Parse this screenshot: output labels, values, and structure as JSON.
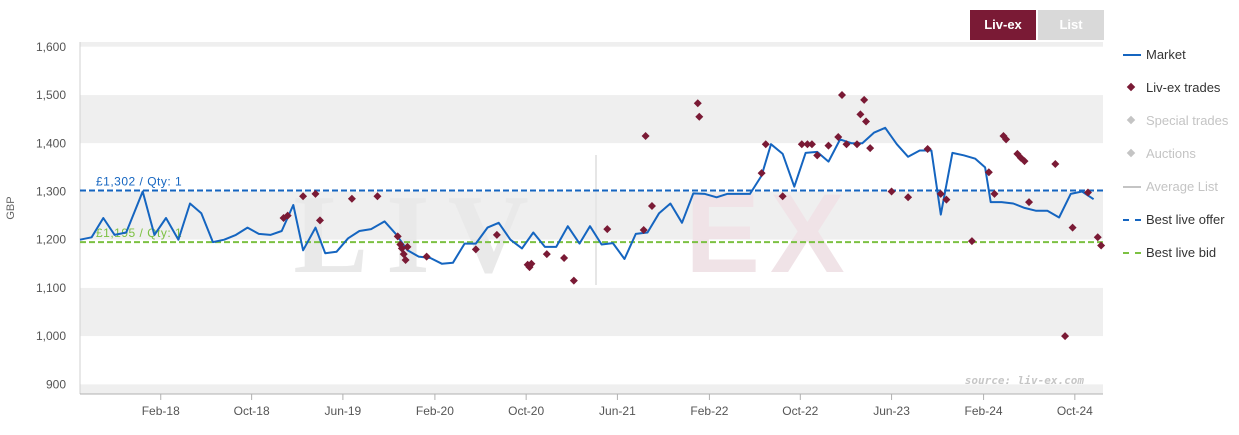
{
  "tabs": [
    {
      "id": "livex",
      "label": "Liv-ex",
      "active": true
    },
    {
      "id": "list",
      "label": "List",
      "active": false
    }
  ],
  "watermark": {
    "left": "LIV",
    "right": "EX"
  },
  "source": "source: liv-ex.com",
  "legend": [
    {
      "label": "Market",
      "symbol": "line",
      "color": "#1565c0",
      "active": true
    },
    {
      "label": "Liv-ex trades",
      "symbol": "diamond",
      "color": "#7a1a35",
      "active": true
    },
    {
      "label": "Special trades",
      "symbol": "diamond",
      "color": "#c4c4c4",
      "active": false
    },
    {
      "label": "Auctions",
      "symbol": "diamond",
      "color": "#c4c4c4",
      "active": false
    },
    {
      "label": "Average List",
      "symbol": "line",
      "color": "#c4c4c4",
      "active": false
    },
    {
      "label": "Best live offer",
      "symbol": "dash",
      "color": "#1565c0",
      "active": true
    },
    {
      "label": "Best live bid",
      "symbol": "dash",
      "color": "#7cc142",
      "active": true
    }
  ],
  "chart_data": {
    "type": "line",
    "title": "",
    "ylabel": "GBP",
    "xlabel": "",
    "ylim": [
      880,
      1610
    ],
    "xlim": [
      "2017-07-01",
      "2024-12-15"
    ],
    "yticks": [
      900,
      1000,
      1100,
      1200,
      1300,
      1400,
      1500,
      1600
    ],
    "ytick_labels": [
      "900",
      "1,000",
      "1,100",
      "1,200",
      "1,300",
      "1,400",
      "1,500",
      "1,600"
    ],
    "xticks": [
      "2018-02-01",
      "2018-10-01",
      "2019-06-01",
      "2020-02-01",
      "2020-10-01",
      "2021-06-01",
      "2022-02-01",
      "2022-10-01",
      "2023-06-01",
      "2024-02-01",
      "2024-10-01"
    ],
    "xtick_labels": [
      "Feb-18",
      "Oct-18",
      "Jun-19",
      "Feb-20",
      "Oct-20",
      "Jun-21",
      "Feb-22",
      "Oct-22",
      "Jun-23",
      "Feb-24",
      "Oct-24"
    ],
    "grid": "alternating horizontal bands",
    "legend_position": "right",
    "reference_lines": [
      {
        "label": "£1,302 / Qty: 1",
        "value": 1302,
        "color": "#1565c0",
        "style": "dashed"
      },
      {
        "label": "£1,195 / Qty: 1",
        "value": 1195,
        "color": "#7cc142",
        "style": "dashed"
      }
    ],
    "series": [
      {
        "name": "Market",
        "kind": "line",
        "color": "#1565c0",
        "points": [
          [
            "2017-07-01",
            1200
          ],
          [
            "2017-08-01",
            1205
          ],
          [
            "2017-09-01",
            1245
          ],
          [
            "2017-10-01",
            1210
          ],
          [
            "2017-11-01",
            1215
          ],
          [
            "2017-12-15",
            1300
          ],
          [
            "2018-01-15",
            1210
          ],
          [
            "2018-02-15",
            1245
          ],
          [
            "2018-03-20",
            1200
          ],
          [
            "2018-04-20",
            1275
          ],
          [
            "2018-05-20",
            1255
          ],
          [
            "2018-06-20",
            1195
          ],
          [
            "2018-07-20",
            1200
          ],
          [
            "2018-08-20",
            1210
          ],
          [
            "2018-09-20",
            1225
          ],
          [
            "2018-10-20",
            1212
          ],
          [
            "2018-11-20",
            1210
          ],
          [
            "2018-12-20",
            1218
          ],
          [
            "2019-01-20",
            1272
          ],
          [
            "2019-02-15",
            1178
          ],
          [
            "2019-03-20",
            1225
          ],
          [
            "2019-04-15",
            1172
          ],
          [
            "2019-05-15",
            1175
          ],
          [
            "2019-06-15",
            1203
          ],
          [
            "2019-07-15",
            1218
          ],
          [
            "2019-08-15",
            1222
          ],
          [
            "2019-09-20",
            1238
          ],
          [
            "2019-10-20",
            1212
          ],
          [
            "2019-11-20",
            1178
          ],
          [
            "2019-12-20",
            1165
          ],
          [
            "2020-01-20",
            1162
          ],
          [
            "2020-02-20",
            1150
          ],
          [
            "2020-03-20",
            1152
          ],
          [
            "2020-04-20",
            1192
          ],
          [
            "2020-05-20",
            1192
          ],
          [
            "2020-06-20",
            1225
          ],
          [
            "2020-07-20",
            1235
          ],
          [
            "2020-08-20",
            1200
          ],
          [
            "2020-09-20",
            1182
          ],
          [
            "2020-10-20",
            1215
          ],
          [
            "2020-11-20",
            1185
          ],
          [
            "2020-12-20",
            1185
          ],
          [
            "2021-01-20",
            1228
          ],
          [
            "2021-02-20",
            1192
          ],
          [
            "2021-03-20",
            1228
          ],
          [
            "2021-04-20",
            1190
          ],
          [
            "2021-05-20",
            1193
          ],
          [
            "2021-06-20",
            1160
          ],
          [
            "2021-07-20",
            1212
          ],
          [
            "2021-08-20",
            1215
          ],
          [
            "2021-09-20",
            1255
          ],
          [
            "2021-10-20",
            1275
          ],
          [
            "2021-11-20",
            1235
          ],
          [
            "2021-12-20",
            1296
          ],
          [
            "2022-01-20",
            1295
          ],
          [
            "2022-02-20",
            1288
          ],
          [
            "2022-03-20",
            1295
          ],
          [
            "2022-04-20",
            1295
          ],
          [
            "2022-05-20",
            1295
          ],
          [
            "2022-06-20",
            1333
          ],
          [
            "2022-07-15",
            1398
          ],
          [
            "2022-08-15",
            1378
          ],
          [
            "2022-09-15",
            1310
          ],
          [
            "2022-10-15",
            1380
          ],
          [
            "2022-11-15",
            1382
          ],
          [
            "2022-12-15",
            1362
          ],
          [
            "2023-01-15",
            1408
          ],
          [
            "2023-02-15",
            1400
          ],
          [
            "2023-03-15",
            1400
          ],
          [
            "2023-04-15",
            1422
          ],
          [
            "2023-05-15",
            1432
          ],
          [
            "2023-06-15",
            1398
          ],
          [
            "2023-07-15",
            1372
          ],
          [
            "2023-08-15",
            1385
          ],
          [
            "2023-09-15",
            1385
          ],
          [
            "2023-10-10",
            1252
          ],
          [
            "2023-11-10",
            1380
          ],
          [
            "2023-12-10",
            1375
          ],
          [
            "2024-01-10",
            1368
          ],
          [
            "2024-02-05",
            1350
          ],
          [
            "2024-02-20",
            1278
          ],
          [
            "2024-03-20",
            1278
          ],
          [
            "2024-04-20",
            1275
          ],
          [
            "2024-05-20",
            1266
          ],
          [
            "2024-06-20",
            1260
          ],
          [
            "2024-07-20",
            1260
          ],
          [
            "2024-08-20",
            1246
          ],
          [
            "2024-09-20",
            1295
          ],
          [
            "2024-10-20",
            1300
          ],
          [
            "2024-11-20",
            1284
          ]
        ]
      },
      {
        "name": "Liv-ex trades",
        "kind": "scatter",
        "color": "#7a1a35",
        "points": [
          [
            "2018-12-25",
            1245
          ],
          [
            "2019-01-05",
            1250
          ],
          [
            "2019-02-15",
            1290
          ],
          [
            "2019-03-20",
            1295
          ],
          [
            "2019-04-01",
            1240
          ],
          [
            "2019-06-25",
            1285
          ],
          [
            "2019-09-01",
            1290
          ],
          [
            "2019-10-25",
            1207
          ],
          [
            "2019-11-01",
            1190
          ],
          [
            "2019-11-05",
            1182
          ],
          [
            "2019-11-10",
            1170
          ],
          [
            "2019-11-15",
            1158
          ],
          [
            "2019-11-20",
            1185
          ],
          [
            "2020-01-10",
            1165
          ],
          [
            "2020-05-20",
            1180
          ],
          [
            "2020-07-15",
            1210
          ],
          [
            "2020-10-05",
            1148
          ],
          [
            "2020-10-10",
            1143
          ],
          [
            "2020-10-15",
            1150
          ],
          [
            "2020-11-25",
            1170
          ],
          [
            "2021-01-10",
            1162
          ],
          [
            "2021-02-05",
            1115
          ],
          [
            "2021-05-05",
            1222
          ],
          [
            "2021-08-10",
            1220
          ],
          [
            "2021-08-15",
            1415
          ],
          [
            "2021-09-01",
            1270
          ],
          [
            "2022-01-01",
            1483
          ],
          [
            "2022-01-05",
            1455
          ],
          [
            "2022-06-20",
            1338
          ],
          [
            "2022-07-01",
            1398
          ],
          [
            "2022-08-15",
            1290
          ],
          [
            "2022-10-05",
            1398
          ],
          [
            "2022-10-20",
            1398
          ],
          [
            "2022-11-01",
            1398
          ],
          [
            "2022-11-15",
            1375
          ],
          [
            "2022-12-15",
            1395
          ],
          [
            "2023-01-10",
            1413
          ],
          [
            "2023-01-20",
            1500
          ],
          [
            "2023-02-01",
            1398
          ],
          [
            "2023-03-01",
            1398
          ],
          [
            "2023-03-10",
            1460
          ],
          [
            "2023-03-20",
            1490
          ],
          [
            "2023-03-25",
            1445
          ],
          [
            "2023-04-05",
            1390
          ],
          [
            "2023-06-01",
            1300
          ],
          [
            "2023-07-15",
            1288
          ],
          [
            "2023-09-05",
            1388
          ],
          [
            "2023-10-10",
            1295
          ],
          [
            "2023-10-25",
            1283
          ],
          [
            "2024-01-01",
            1197
          ],
          [
            "2024-02-15",
            1340
          ],
          [
            "2024-03-01",
            1295
          ],
          [
            "2024-03-25",
            1415
          ],
          [
            "2024-04-01",
            1408
          ],
          [
            "2024-05-01",
            1378
          ],
          [
            "2024-05-10",
            1370
          ],
          [
            "2024-05-20",
            1363
          ],
          [
            "2024-06-01",
            1278
          ],
          [
            "2024-08-10",
            1357
          ],
          [
            "2024-09-05",
            1000
          ],
          [
            "2024-09-25",
            1225
          ],
          [
            "2024-11-05",
            1298
          ],
          [
            "2024-12-01",
            1205
          ],
          [
            "2024-12-10",
            1188
          ]
        ]
      }
    ]
  }
}
